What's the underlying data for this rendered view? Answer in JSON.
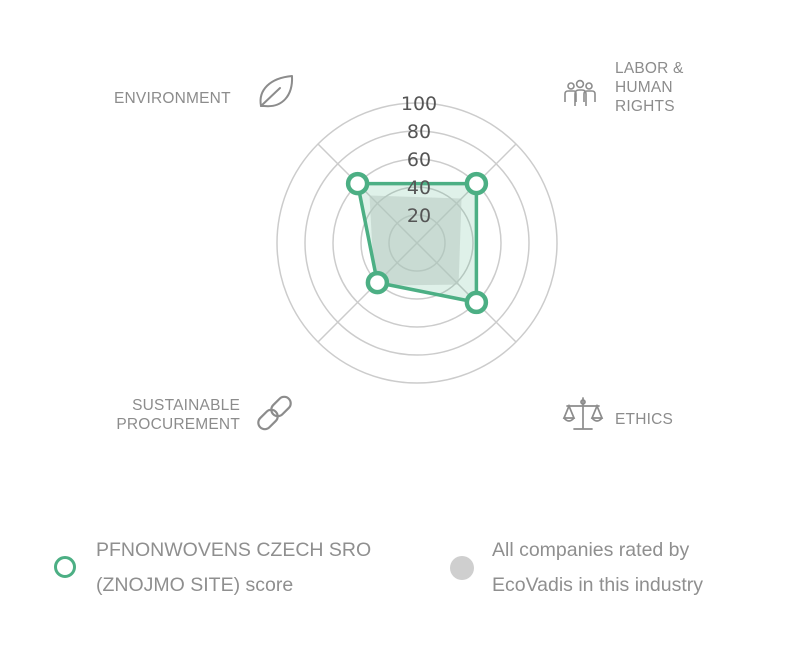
{
  "chart_data": {
    "type": "radar",
    "axes": [
      "ENVIRONMENT",
      "LABOR & HUMAN RIGHTS",
      "ETHICS",
      "SUSTAINABLE PROCUREMENT"
    ],
    "axis_label_lines": {
      "ENVIRONMENT": [
        "ENVIRONMENT"
      ],
      "LABOR & HUMAN RIGHTS": [
        "LABOR &",
        "HUMAN",
        "RIGHTS"
      ],
      "ETHICS": [
        "ETHICS"
      ],
      "SUSTAINABLE PROCUREMENT": [
        "SUSTAINABLE",
        "PROCUREMENT"
      ]
    },
    "axis_icons": [
      "leaf-icon",
      "people-icon",
      "scales-icon",
      "chain-link-icon"
    ],
    "rlim": [
      0,
      100
    ],
    "ticks": [
      20,
      40,
      60,
      80,
      100
    ],
    "series": [
      {
        "name": "PFNONWOVENS CZECH SRO (ZNOJMO SITE) score",
        "values": [
          60,
          60,
          60,
          40
        ],
        "color": "#4caf84"
      },
      {
        "name": "All companies rated by EcoVadis in this industry",
        "values": [
          48,
          45,
          42,
          43
        ],
        "color": "#cfcfcf"
      }
    ]
  },
  "legend": {
    "company_line1": "PFNONWOVENS CZECH SRO",
    "company_line2": "(ZNOJMO SITE) score",
    "industry_line1": "All companies rated by",
    "industry_line2": "EcoVadis in this industry"
  }
}
